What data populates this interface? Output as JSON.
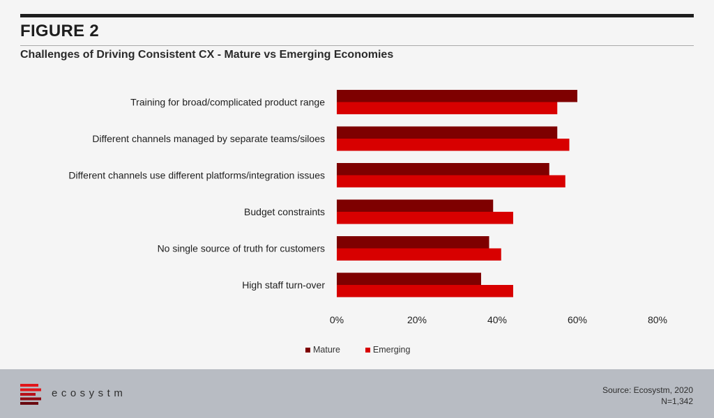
{
  "header": {
    "figure_label": "FIGURE 2",
    "subtitle": "Challenges of Driving Consistent CX - Mature vs Emerging Economies"
  },
  "legend": {
    "mature": "Mature",
    "emerging": "Emerging"
  },
  "footer": {
    "brand": "ecosystm",
    "source": "Source: Ecosystm, 2020",
    "sample": "N=1,342"
  },
  "colors": {
    "mature": "#7e0000",
    "emerging": "#d80000",
    "background": "#f5f5f5",
    "footer": "#b8bcc3"
  },
  "chart_data": {
    "type": "bar",
    "orientation": "horizontal",
    "categories": [
      "Training for broad/complicated product range",
      "Different channels managed by separate teams/siloes",
      "Different channels use different platforms/integration issues",
      "Budget constraints",
      "No single source of truth for customers",
      "High staff turn-over"
    ],
    "series": [
      {
        "name": "Mature",
        "values": [
          60,
          55,
          53,
          39,
          38,
          36
        ]
      },
      {
        "name": "Emerging",
        "values": [
          55,
          58,
          57,
          44,
          41,
          44
        ]
      }
    ],
    "xlim": [
      0,
      80
    ],
    "xticks": [
      0,
      20,
      40,
      60,
      80
    ],
    "xtick_labels": [
      "0%",
      "20%",
      "40%",
      "60%",
      "80%"
    ],
    "grid": false,
    "legend_position": "bottom"
  }
}
